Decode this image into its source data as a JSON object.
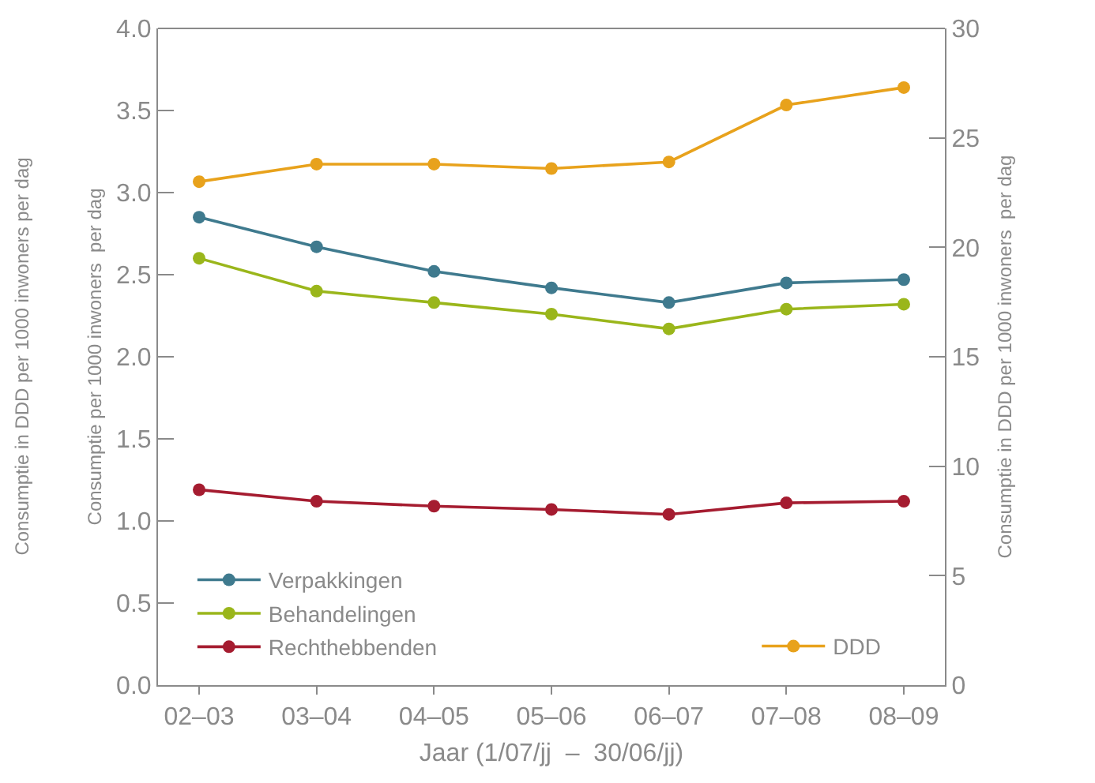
{
  "chart_data": {
    "type": "line",
    "categories": [
      "02–03",
      "03–04",
      "04–05",
      "05–06",
      "06–07",
      "07–08",
      "08–09"
    ],
    "xlabel": "Jaar (1/07/jj  –  30/06/jj)",
    "ylabel": "Consumptie per 1000 inwoners  per dag",
    "y2label": "Consumptie in DDD per 1000 inwoners  per dag",
    "annotations": [
      "Consumptie in DDD per 1000 inwoners per dag"
    ],
    "series": [
      {
        "name": "Verpakkingen",
        "color": "#3f7a8e",
        "values": [
          2.85,
          2.67,
          2.52,
          2.42,
          2.33,
          2.45,
          2.47
        ]
      },
      {
        "name": "Behandelingen",
        "color": "#9ab61b",
        "values": [
          2.6,
          2.4,
          2.33,
          2.26,
          2.17,
          2.29,
          2.32
        ]
      },
      {
        "name": "Rechthebbenden",
        "color": "#a51c30",
        "values": [
          1.19,
          1.12,
          1.09,
          1.07,
          1.04,
          1.11,
          1.12
        ]
      },
      {
        "name": "DDD",
        "color": "#e8a21c",
        "axis": "y2",
        "values": [
          23.0,
          23.8,
          23.8,
          23.6,
          23.9,
          26.5,
          27.3
        ]
      }
    ],
    "ylim": [
      0,
      4
    ],
    "yticks": [
      {
        "value": 0,
        "label": "0.0"
      },
      0.5,
      {
        "value": 1,
        "label": "1.0"
      },
      1.5,
      {
        "value": 2,
        "label": "2.0"
      },
      2.5,
      {
        "value": 3,
        "label": "3.0"
      },
      3.5,
      {
        "value": 4,
        "label": "4.0"
      }
    ],
    "y2lim": [
      0,
      30
    ],
    "y2ticks": [
      0,
      5,
      10,
      15,
      20,
      25,
      30
    ],
    "legend": "bottom left",
    "marker": "circle",
    "line_style": "solid"
  }
}
